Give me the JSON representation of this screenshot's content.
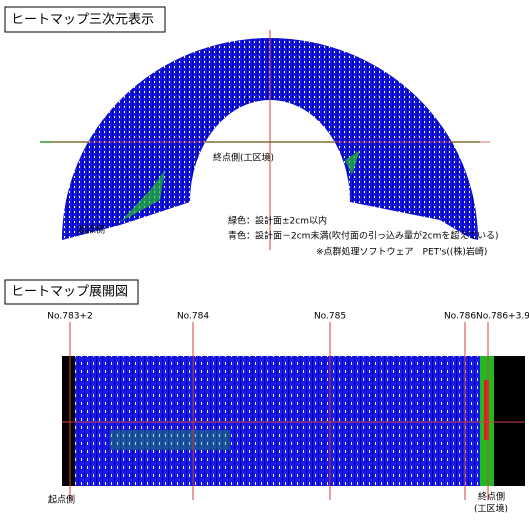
{
  "three_d_view": {
    "title": "ヒートマップ三次元表示",
    "end_side": "終点側(工区境)",
    "start_side": "起点側",
    "legend": [
      "緑色：設計面±2cm以内",
      "青色：設計面－2cm未満(吹付面の引っ込み量が2cmを超えている)"
    ],
    "credit": "※点群処理ソフトウェア　PET's((株)岩崎)"
  },
  "development_view": {
    "title": "ヒートマップ展開図",
    "stations": [
      "No.783+2",
      "No.784",
      "No.785",
      "No.786",
      "No.786+3.9"
    ],
    "start_side": "起点側",
    "end_side": [
      "終点側",
      "(工区境)"
    ]
  }
}
